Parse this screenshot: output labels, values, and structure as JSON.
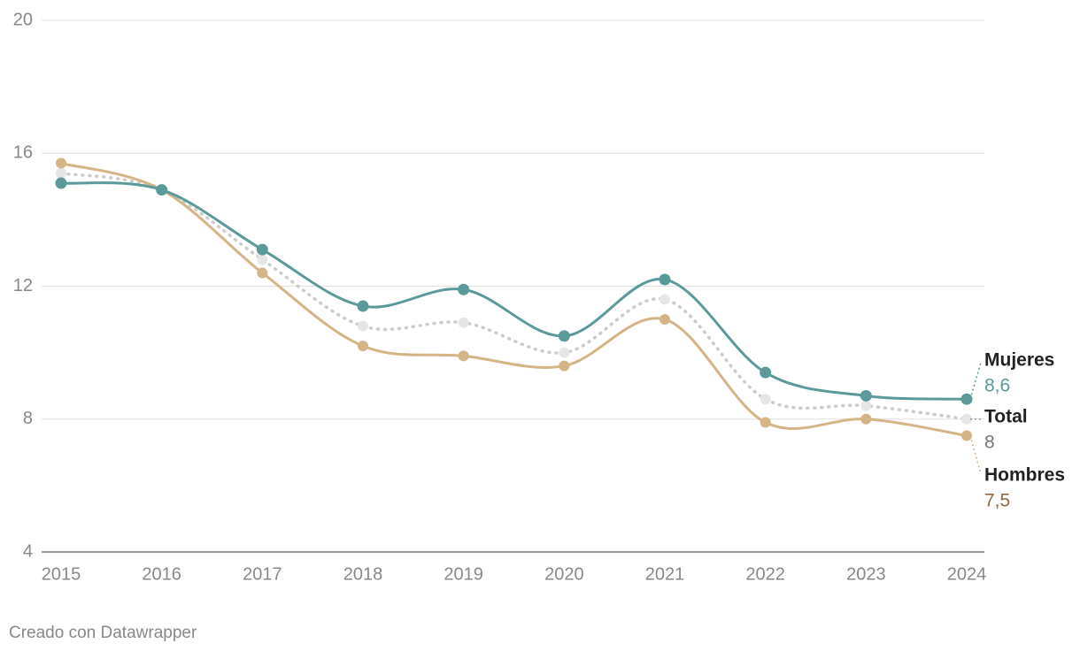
{
  "chart_data": {
    "type": "line",
    "categories": [
      "2015",
      "2016",
      "2017",
      "2018",
      "2019",
      "2020",
      "2021",
      "2022",
      "2023",
      "2024"
    ],
    "series": [
      {
        "name": "Mujeres",
        "color": "#5b9a9b",
        "style": "solid",
        "values": [
          15.1,
          14.9,
          13.1,
          11.4,
          11.9,
          10.5,
          12.2,
          9.4,
          8.7,
          8.6
        ],
        "value_labels": [
          null,
          null,
          null,
          null,
          null,
          null,
          null,
          null,
          null,
          "8,6"
        ]
      },
      {
        "name": "Total",
        "color": "#cccccc",
        "style": "dotted",
        "values": [
          15.4,
          14.9,
          12.8,
          10.8,
          10.9,
          10.0,
          11.6,
          8.6,
          8.4,
          8
        ],
        "value_labels": [
          null,
          null,
          null,
          null,
          null,
          null,
          null,
          null,
          null,
          "8"
        ]
      },
      {
        "name": "Hombres",
        "color": "#d5b486",
        "style": "solid",
        "values": [
          15.7,
          14.9,
          12.4,
          10.2,
          9.9,
          9.6,
          11.0,
          7.9,
          8.0,
          7.5
        ],
        "value_labels": [
          null,
          null,
          null,
          null,
          null,
          null,
          null,
          null,
          null,
          "7,5"
        ]
      }
    ],
    "ylim": [
      4,
      20
    ],
    "yticks": [
      4,
      8,
      12,
      16,
      20
    ],
    "grid": true,
    "footer": "Creado con Datawrapper"
  }
}
